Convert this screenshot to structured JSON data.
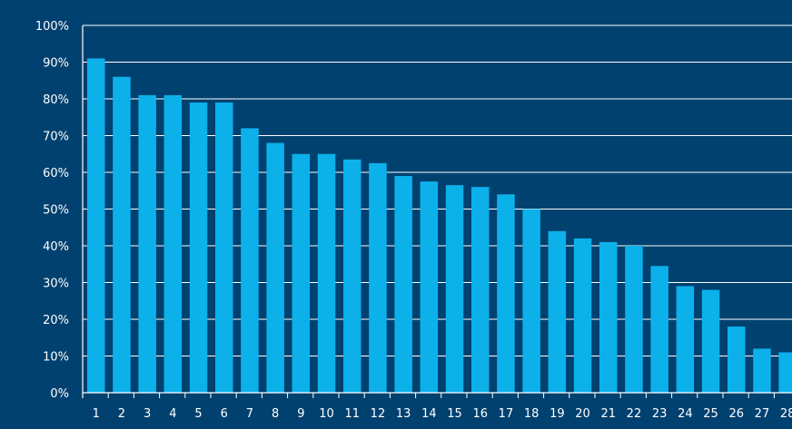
{
  "colors": {
    "background": "#004170",
    "bar": "#0cb1ea",
    "axis": "#ffffff",
    "text": "#ffffff"
  },
  "chart_data": {
    "type": "bar",
    "categories": [
      "1",
      "2",
      "3",
      "4",
      "5",
      "6",
      "7",
      "8",
      "9",
      "10",
      "11",
      "12",
      "13",
      "14",
      "15",
      "16",
      "17",
      "18",
      "19",
      "20",
      "21",
      "22",
      "23",
      "24",
      "25",
      "26",
      "27",
      "28"
    ],
    "values": [
      91,
      86,
      81,
      81,
      79,
      79,
      72,
      68,
      65,
      65,
      63.5,
      62.5,
      59,
      57.5,
      56.5,
      56,
      54,
      50,
      44,
      42,
      41,
      40,
      34.5,
      29,
      28,
      18,
      12,
      11
    ],
    "y_ticks": [
      "0%",
      "10%",
      "20%",
      "30%",
      "40%",
      "50%",
      "60%",
      "70%",
      "80%",
      "90%",
      "100%"
    ],
    "ylim": [
      0,
      100
    ],
    "title": "",
    "xlabel": "",
    "ylabel": "",
    "grid": true,
    "legend": "none"
  }
}
